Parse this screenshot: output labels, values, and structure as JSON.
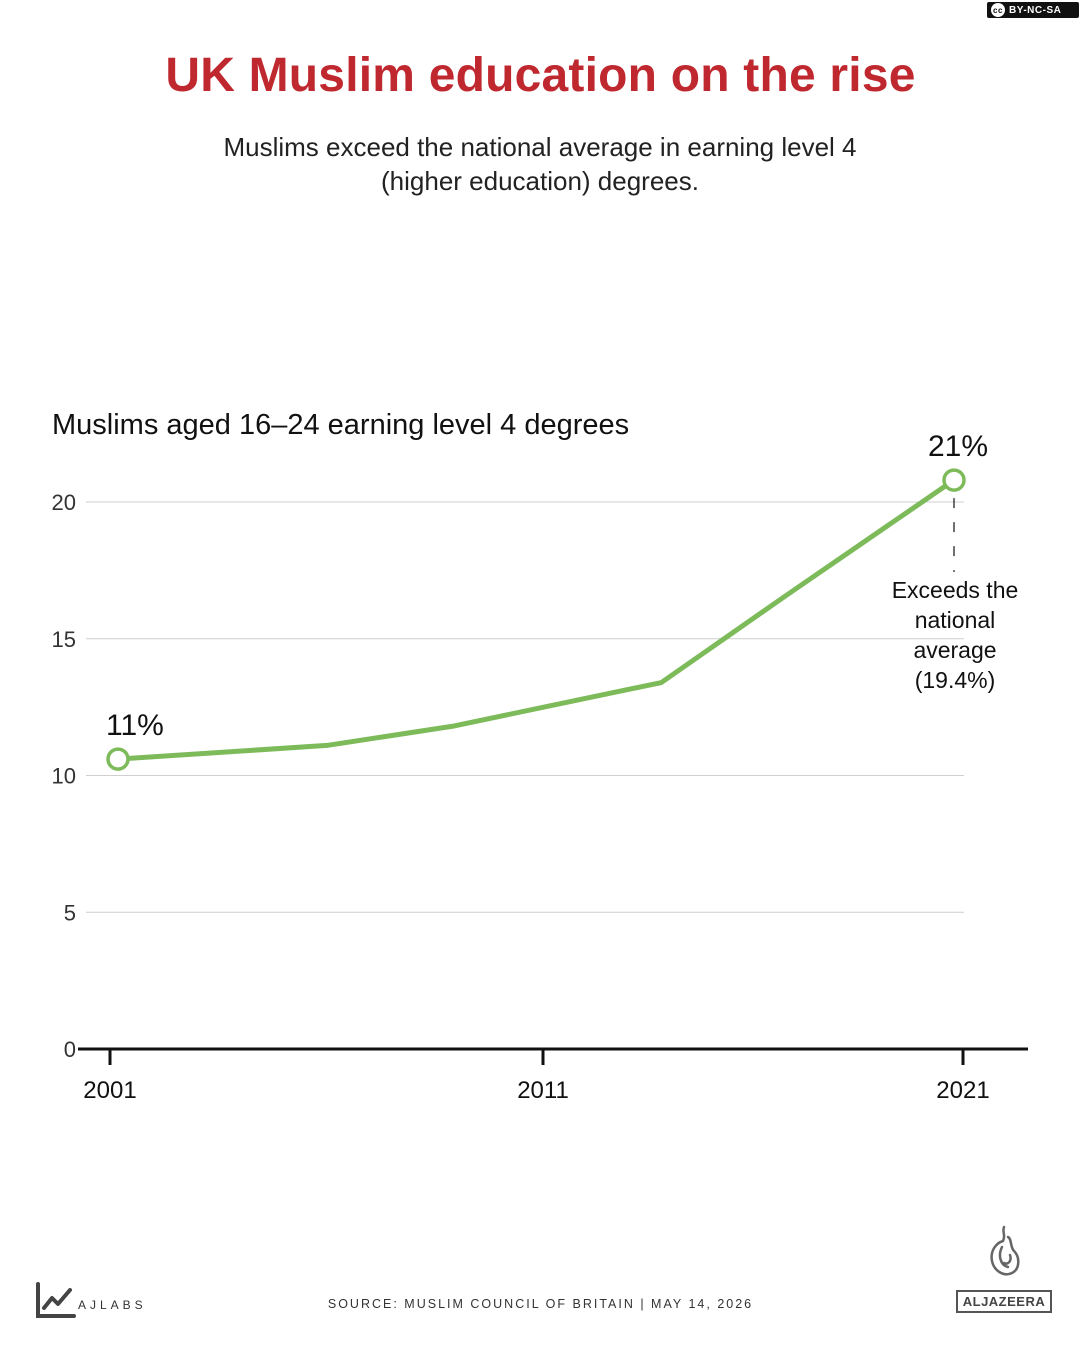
{
  "license": "BY-NC-SA",
  "license_badge": "cc",
  "header": {
    "title": "UK Muslim education on the rise",
    "subtitle_line1": "Muslims exceed the national average in earning level 4",
    "subtitle_line2": "(higher education) degrees."
  },
  "chart_data": {
    "type": "line",
    "title": "Muslims aged 16–24 earning level 4 degrees",
    "xlabel": "",
    "ylabel": "",
    "x": [
      2001,
      2006,
      2009,
      2014,
      2017,
      2021
    ],
    "series": [
      {
        "values": [
          10.6,
          11.1,
          11.8,
          13.4,
          16.6,
          20.8
        ],
        "color": "#7dbb5a"
      }
    ],
    "xlim": [
      2001,
      2021
    ],
    "ylim": [
      0,
      20
    ],
    "y_ticks": [
      0,
      5,
      10,
      15,
      20
    ],
    "x_ticks": [
      2001,
      2011,
      2021
    ],
    "x_tick_labels": [
      "2001",
      "2011",
      "2021"
    ],
    "y_tick_labels": [
      "0",
      "5",
      "10",
      "15",
      "20"
    ],
    "gridlines": true,
    "endpoint_labels": {
      "start": "11%",
      "end": "21%"
    },
    "annotation": [
      "Exceeds the",
      "national",
      "average",
      "(19.4%)"
    ]
  },
  "footer": {
    "source": "SOURCE:  MUSLIM COUNCIL OF BRITAIN  |  MAY 14, 2026",
    "left_brand": "AJLABS",
    "right_brand": "ALJAZEERA"
  }
}
